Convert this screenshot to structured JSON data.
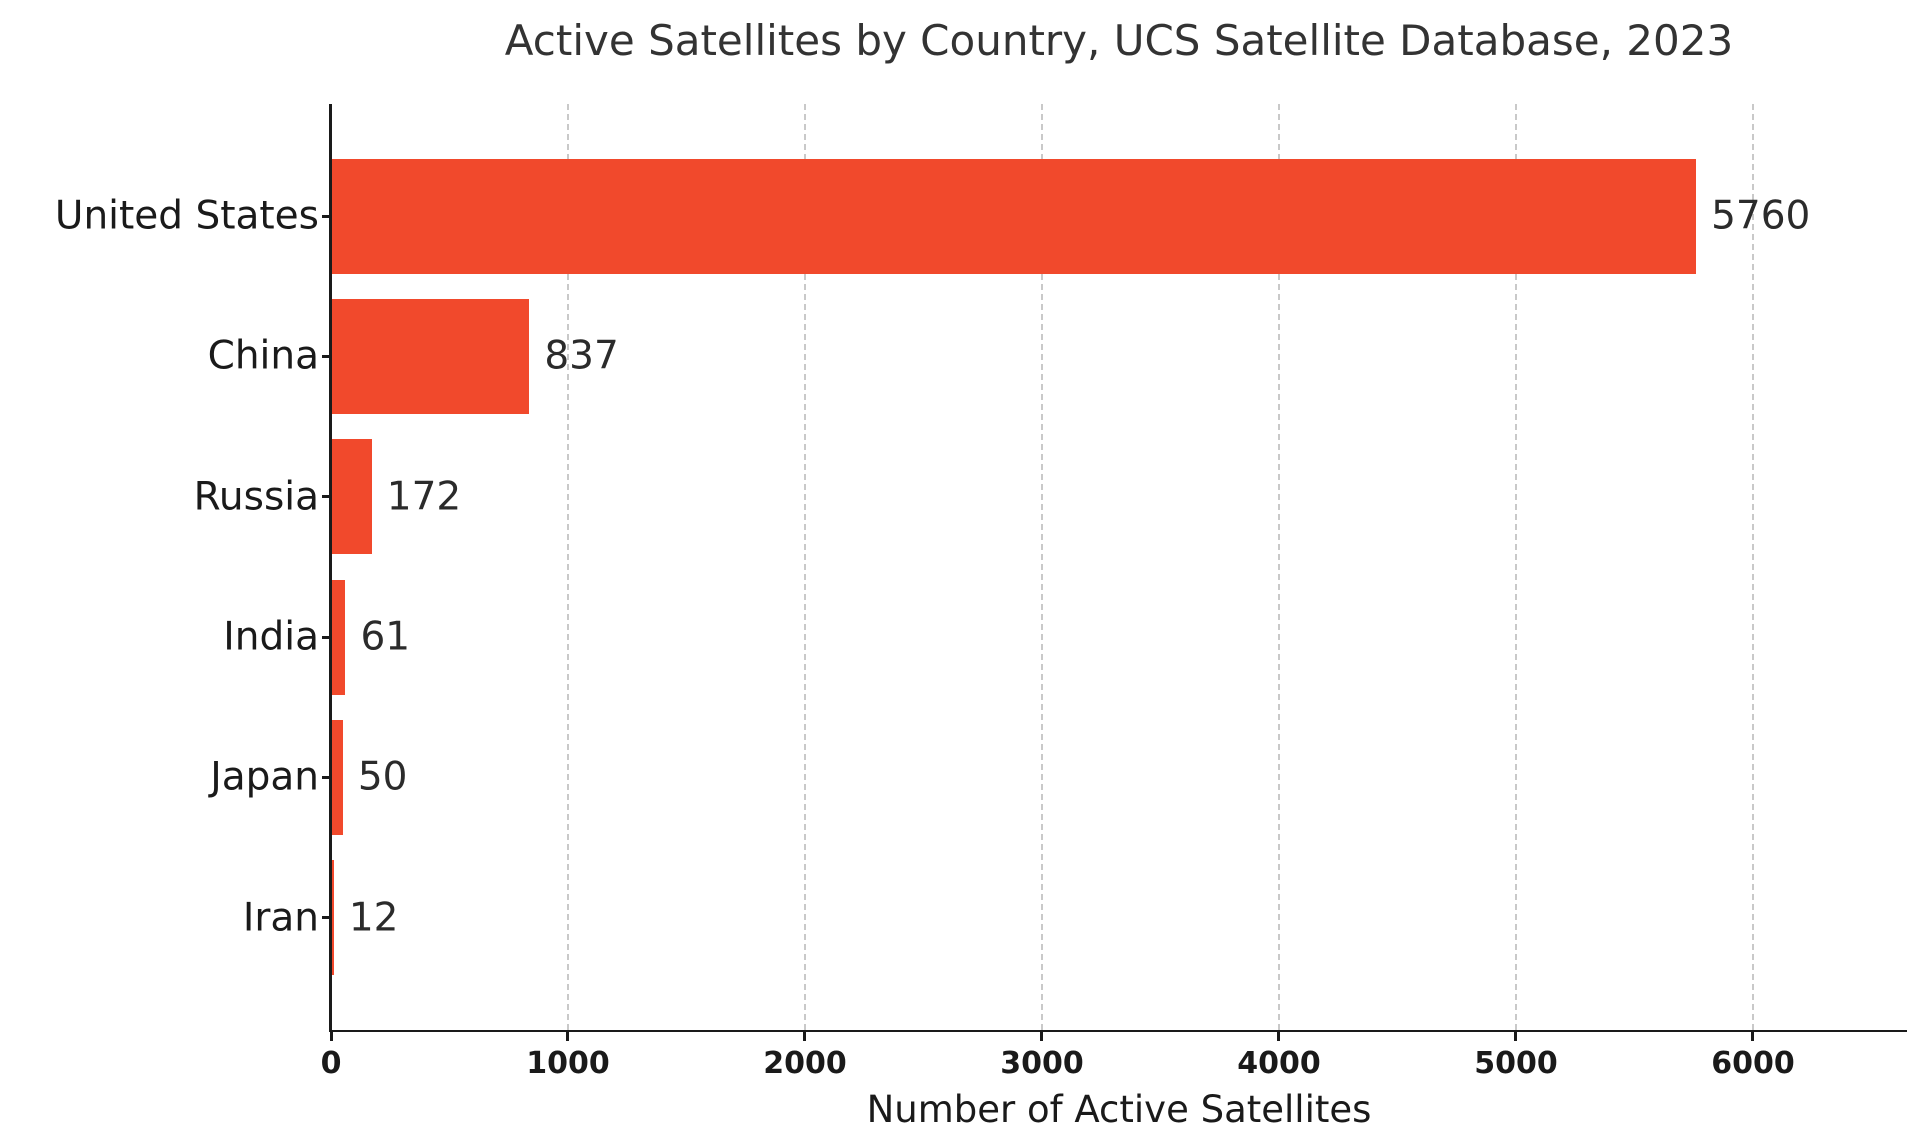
{
  "chart_data": {
    "type": "bar",
    "orientation": "horizontal",
    "title": "Active Satellites by Country, UCS Satellite Database, 2023",
    "categories": [
      "United States",
      "China",
      "Russia",
      "India",
      "Japan",
      "Iran"
    ],
    "values": [
      5760,
      837,
      172,
      61,
      50,
      12
    ],
    "value_labels": [
      "5760",
      "837",
      "172",
      "61",
      "50",
      "12"
    ],
    "xlabel": "Number of Active Satellites",
    "ylabel": "",
    "xlim": [
      0,
      6650
    ],
    "xticks": [
      0,
      1000,
      2000,
      3000,
      4000,
      5000,
      6000
    ],
    "grid": "vertical-dashed",
    "legend": "none",
    "bar_color": "#f1492c",
    "text_color": "#262626",
    "grid_color": "#c9c9c9",
    "axis_color": "#1a1a1a",
    "background": "#ffffff"
  }
}
